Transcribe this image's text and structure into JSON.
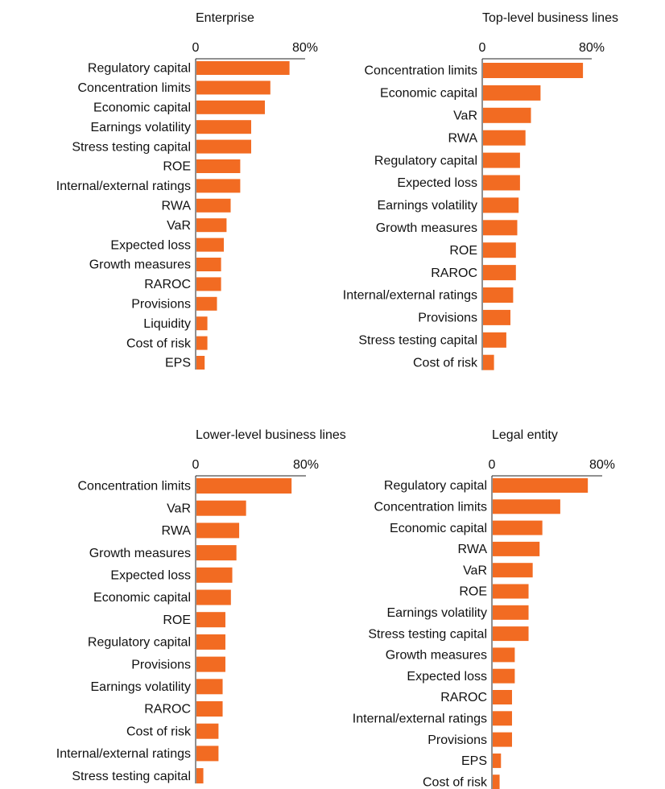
{
  "chart_data": [
    {
      "type": "bar",
      "title": "Enterprise",
      "categories": [
        "Regulatory capital",
        "Concentration limits",
        "Economic capital",
        "Earnings volatility",
        "Stress testing capital",
        "ROE",
        "Internal/external ratings",
        "RWA",
        "VaR",
        "Expected loss",
        "Growth measures",
        "RAROC",
        "Provisions",
        "Liquidity",
        "Cost of risk",
        "EPS"
      ],
      "values": [
        68,
        54,
        50,
        40,
        40,
        32,
        32,
        25,
        22,
        20,
        18,
        18,
        15,
        8,
        8,
        6
      ],
      "color": "#f26b22",
      "xlim": [
        0,
        80
      ],
      "xticks": [
        0,
        {
          "value": 80,
          "label": "80%"
        }
      ]
    },
    {
      "type": "bar",
      "title": "Top-level business lines",
      "categories": [
        "Concentration limits",
        "Economic capital",
        "VaR",
        "RWA",
        "Regulatory capital",
        "Expected loss",
        "Earnings volatility",
        "Growth measures",
        "ROE",
        "RAROC",
        "Internal/external ratings",
        "Provisions",
        "Stress testing capital",
        "Cost of risk"
      ],
      "values": [
        73,
        42,
        35,
        31,
        27,
        27,
        26,
        25,
        24,
        24,
        22,
        20,
        17,
        8
      ],
      "color": "#f26b22",
      "xlim": [
        0,
        80
      ],
      "xticks": [
        0,
        {
          "value": 80,
          "label": "80%"
        }
      ]
    },
    {
      "type": "bar",
      "title": "Lower-level business lines",
      "categories": [
        "Concentration limits",
        "VaR",
        "RWA",
        "Growth measures",
        "Expected loss",
        "Economic capital",
        "ROE",
        "Regulatory capital",
        "Provisions",
        "Earnings volatility",
        "RAROC",
        "Cost of risk",
        "Internal/external ratings",
        "Stress testing capital"
      ],
      "values": [
        69,
        36,
        31,
        29,
        26,
        25,
        21,
        21,
        21,
        19,
        19,
        16,
        16,
        5
      ],
      "color": "#f26b22",
      "xlim": [
        0,
        80
      ],
      "xticks": [
        0,
        {
          "value": 80,
          "label": "80%"
        }
      ]
    },
    {
      "type": "bar",
      "title": "Legal entity",
      "categories": [
        "Regulatory capital",
        "Concentration limits",
        "Economic capital",
        "RWA",
        "VaR",
        "ROE",
        "Earnings volatility",
        "Stress testing capital",
        "Growth measures",
        "Expected loss",
        "RAROC",
        "Internal/external ratings",
        "Provisions",
        "EPS",
        "Cost of risk"
      ],
      "values": [
        69,
        49,
        36,
        34,
        29,
        26,
        26,
        26,
        16,
        16,
        14,
        14,
        14,
        6,
        5
      ],
      "color": "#f26b22",
      "xlim": [
        0,
        80
      ],
      "xticks": [
        0,
        {
          "value": 80,
          "label": "80%"
        }
      ]
    }
  ]
}
